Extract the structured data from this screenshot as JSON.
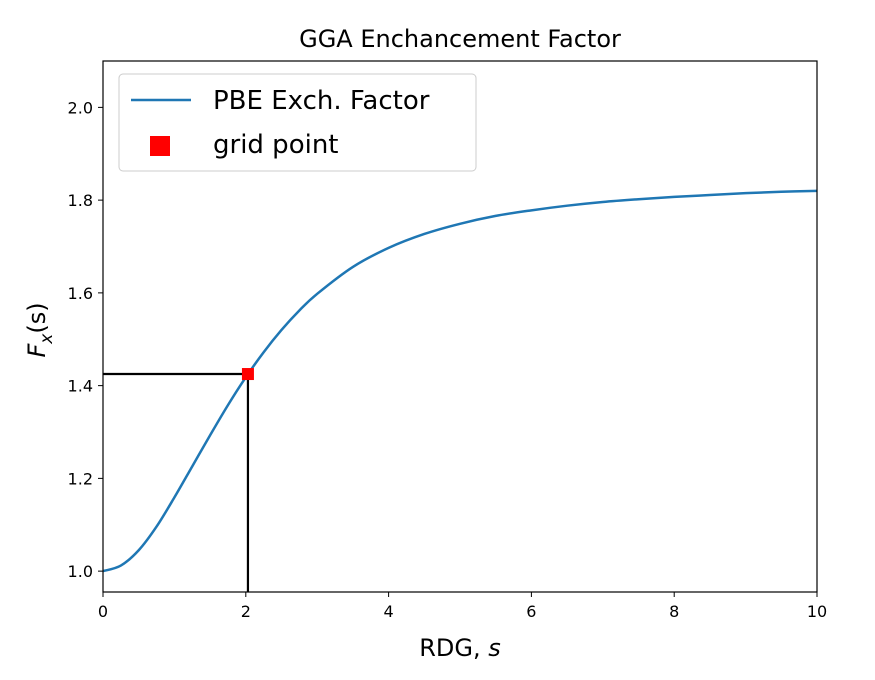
{
  "chart_data": {
    "type": "line",
    "title": "GGA Enchancement Factor",
    "xlabel": {
      "main": "RDG, ",
      "var": "s"
    },
    "ylabel": {
      "f": "F",
      "sub": "x",
      "paren": "(s)"
    },
    "xlim": [
      0,
      10
    ],
    "ylim": [
      0.955,
      2.1
    ],
    "grid": false,
    "legend_position": "top-left",
    "xticks": [
      0,
      2,
      4,
      6,
      8,
      10
    ],
    "xtick_labels": [
      "0",
      "2",
      "4",
      "6",
      "8",
      "10"
    ],
    "yticks": [
      1.0,
      1.2,
      1.4,
      1.6,
      1.8,
      2.0
    ],
    "ytick_labels": [
      "1.0",
      "1.2",
      "1.4",
      "1.6",
      "1.8",
      "2.0"
    ],
    "series": [
      {
        "name": "PBE Exch. Factor",
        "color": "#1f77b4",
        "x": [
          0,
          0.25,
          0.5,
          0.75,
          1.0,
          1.25,
          1.5,
          1.75,
          2.0,
          2.25,
          2.5,
          2.75,
          3.0,
          3.5,
          4.0,
          4.5,
          5.0,
          5.5,
          6.0,
          6.5,
          7.0,
          7.5,
          8.0,
          8.5,
          9.0,
          9.5,
          10.0
        ],
        "y": [
          1.0,
          1.012,
          1.045,
          1.096,
          1.159,
          1.226,
          1.293,
          1.358,
          1.418,
          1.472,
          1.52,
          1.562,
          1.598,
          1.656,
          1.697,
          1.727,
          1.749,
          1.766,
          1.778,
          1.788,
          1.796,
          1.802,
          1.807,
          1.811,
          1.815,
          1.818,
          1.82
        ]
      }
    ],
    "markers": [
      {
        "name": "grid point",
        "color": "#ff0000",
        "x": 2.03,
        "y": 1.425
      }
    ],
    "guide_lines": {
      "x": 2.03,
      "y": 1.425,
      "color": "#000000"
    }
  }
}
